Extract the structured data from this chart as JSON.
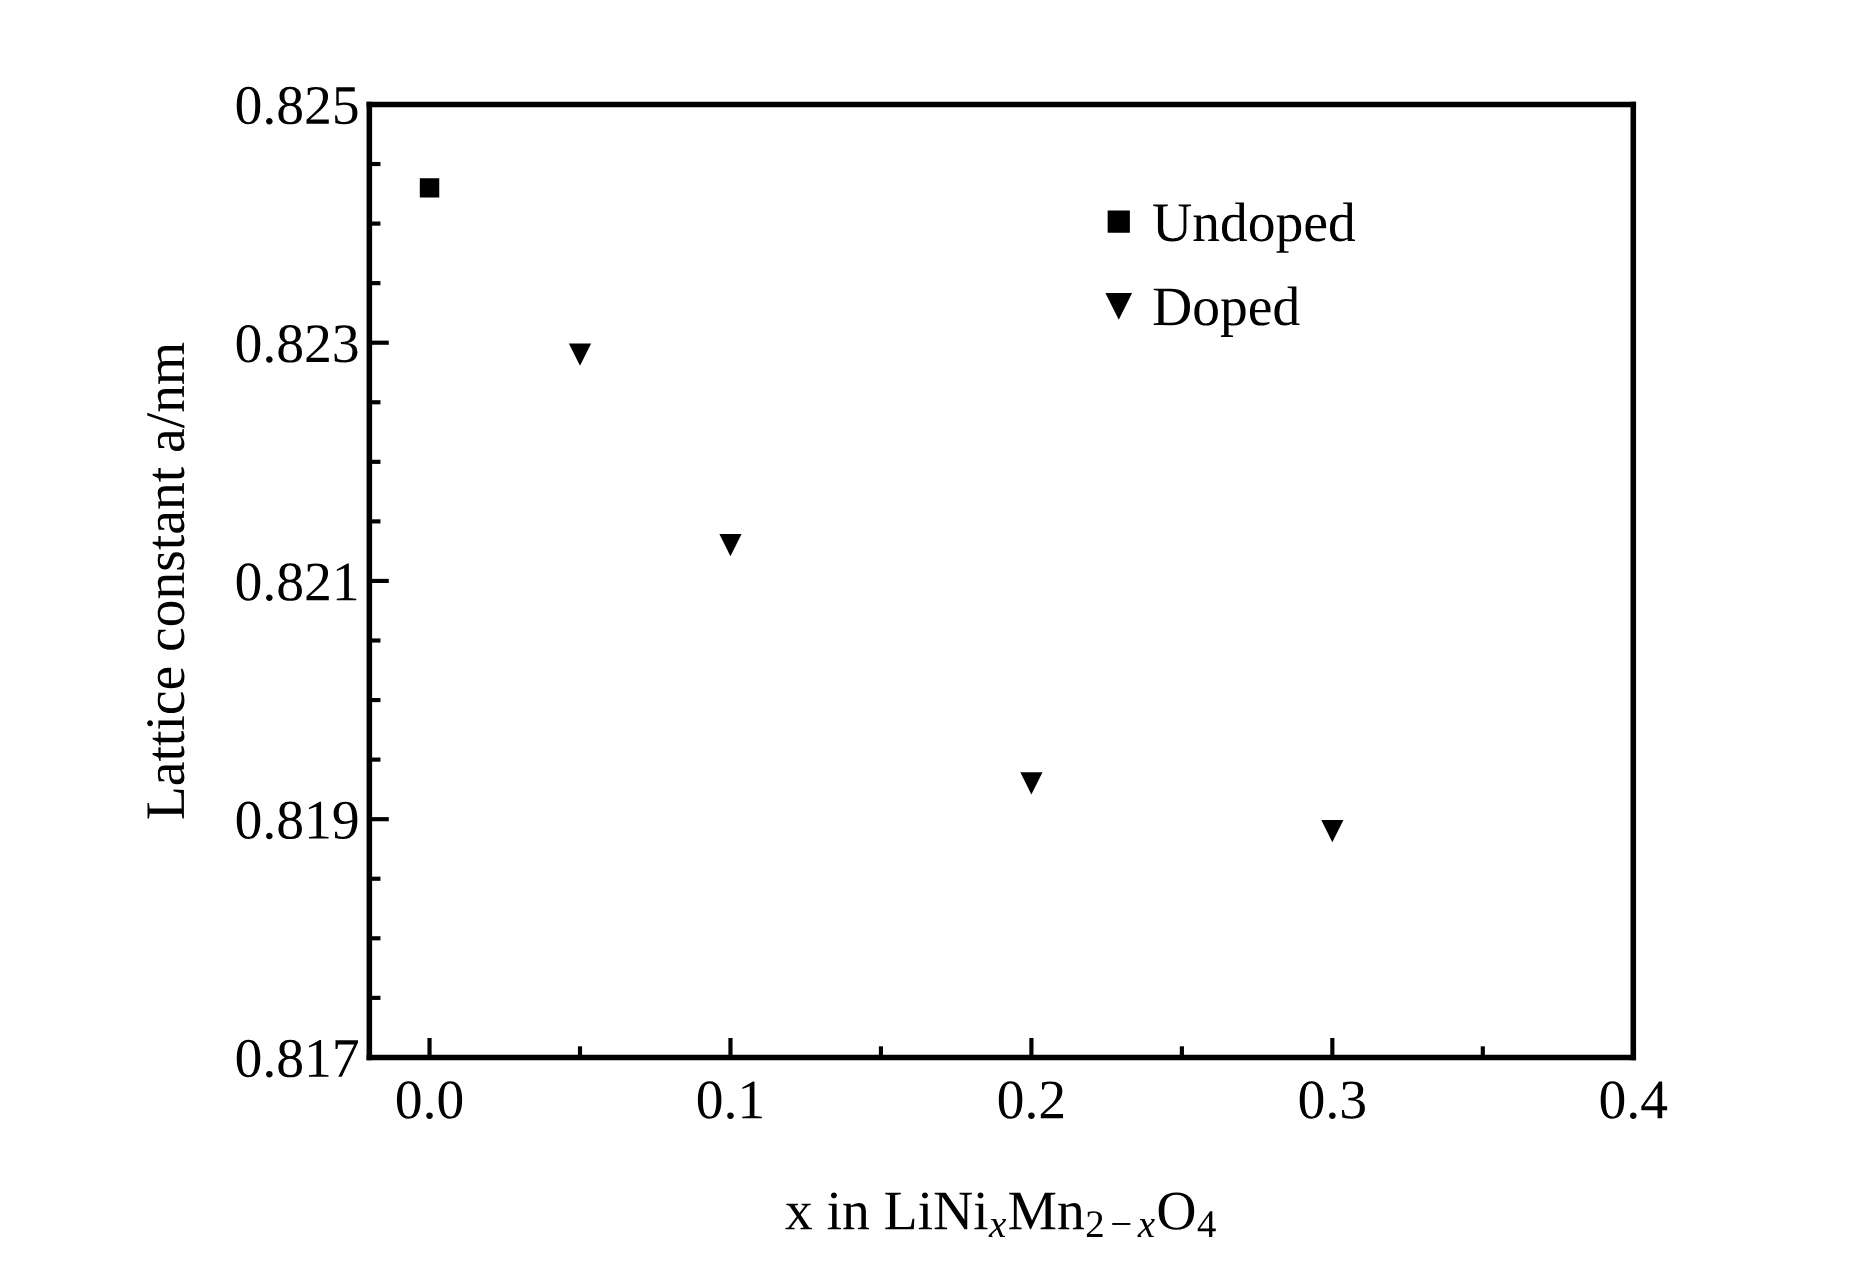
{
  "chart_data": {
    "type": "scatter",
    "xlabel": "x in LiNi$_{x}$Mn$_{2−x}$O$_{4}$",
    "ylabel": "Lattice constant a/nm",
    "series": [
      {
        "name": "Undoped",
        "color": "#000000",
        "marker": "square",
        "x": [
          0.0
        ],
        "values": [
          0.8243
        ]
      },
      {
        "name": "Doped",
        "color": "#000000",
        "marker": "triangle",
        "x": [
          0.05,
          0.1,
          0.2,
          0.3
        ],
        "values": [
          0.8229,
          0.8213,
          0.8193,
          0.8189
        ]
      }
    ],
    "xlim": [
      -0.02,
      0.4
    ],
    "xticks": [
      {
        "value": 0,
        "label": "0.0"
      },
      {
        "value": 0.05,
        "label": null
      },
      {
        "value": 0.1,
        "label": "0.1"
      },
      {
        "value": 0.15,
        "label": null
      },
      {
        "value": 0.2,
        "label": "0.2"
      },
      {
        "value": 0.25,
        "label": null
      },
      {
        "value": 0.3,
        "label": "0.3"
      },
      {
        "value": 0.35,
        "label": null
      },
      {
        "value": 0.4,
        "label": "0.4"
      }
    ],
    "ylim": [
      0.817,
      0.825
    ],
    "yticks": [
      0.817,
      {
        "value": 0.8175,
        "label": null
      },
      {
        "value": 0.818,
        "label": null
      },
      {
        "value": 0.8185,
        "label": null
      },
      0.819,
      {
        "value": 0.8195,
        "label": null
      },
      {
        "value": 0.82,
        "label": null
      },
      {
        "value": 0.8205,
        "label": null
      },
      0.821,
      {
        "value": 0.8215,
        "label": null
      },
      {
        "value": 0.822,
        "label": null
      },
      {
        "value": 0.8225,
        "label": null
      },
      0.823,
      {
        "value": 0.8235,
        "label": null
      },
      {
        "value": 0.824,
        "label": null
      },
      {
        "value": 0.8245,
        "label": null
      },
      0.825
    ],
    "legend": "top right"
  }
}
